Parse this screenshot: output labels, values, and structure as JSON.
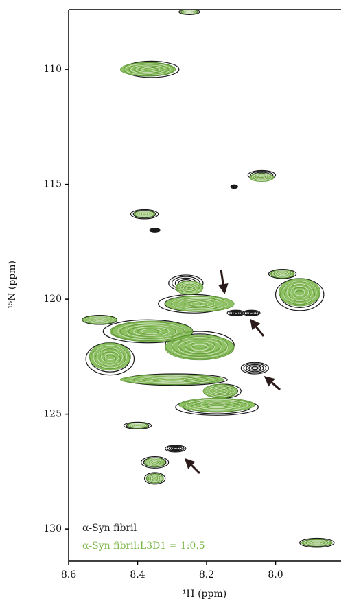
{
  "chart_data": {
    "type": "contour",
    "x_label": "¹H (ppm)",
    "y_label": "¹⁵N (ppm)",
    "xlim": [
      8.6,
      7.81
    ],
    "ylim": [
      107.4,
      131.4
    ],
    "xticks": [
      8.6,
      8.4,
      8.2,
      {
        "value": 8,
        "label": "8.0"
      }
    ],
    "yticks": [
      110,
      115,
      120,
      125,
      130
    ],
    "series": [
      {
        "name": "α-Syn fibril",
        "color": "#1a1a1a",
        "x": [
          8.25,
          8.36,
          8.04,
          8.12,
          8.38,
          8.35,
          8.26,
          7.98,
          7.93,
          8.24,
          8.51,
          8.115,
          8.07,
          8.37,
          8.48,
          8.22,
          8.06,
          8.29,
          8.17,
          8.15,
          8.4,
          8.29,
          8.35,
          8.35,
          7.88
        ],
        "y": [
          107.5,
          110.0,
          114.6,
          115.1,
          116.3,
          117.0,
          119.3,
          118.9,
          119.8,
          120.2,
          120.9,
          120.6,
          120.6,
          121.4,
          122.6,
          122.0,
          123.0,
          123.5,
          124.7,
          124.0,
          125.5,
          126.5,
          127.1,
          127.8,
          130.6
        ],
        "wx": [
          0.03,
          0.08,
          0.04,
          0.01,
          0.04,
          0.015,
          0.05,
          0.04,
          0.07,
          0.1,
          0.05,
          0.025,
          0.025,
          0.13,
          0.07,
          0.1,
          0.04,
          0.15,
          0.12,
          0.05,
          0.04,
          0.03,
          0.04,
          0.03,
          0.05
        ],
        "wy": [
          0.12,
          0.35,
          0.2,
          0.08,
          0.2,
          0.08,
          0.35,
          0.2,
          0.7,
          0.4,
          0.2,
          0.12,
          0.12,
          0.5,
          0.7,
          0.6,
          0.25,
          0.25,
          0.35,
          0.3,
          0.15,
          0.15,
          0.25,
          0.25,
          0.2
        ]
      },
      {
        "name": "α-Syn fibril:L3D1 = 1:0.5",
        "color": "#7ab648",
        "x": [
          8.25,
          8.37,
          8.04,
          8.38,
          8.25,
          7.98,
          7.93,
          8.22,
          8.51,
          8.36,
          8.48,
          8.22,
          8.3,
          8.17,
          8.16,
          8.4,
          8.35,
          8.35,
          7.88
        ],
        "y": [
          107.5,
          110.0,
          114.7,
          116.3,
          119.5,
          118.9,
          119.7,
          120.2,
          120.9,
          121.4,
          122.5,
          122.1,
          123.5,
          124.6,
          124.0,
          125.5,
          127.1,
          127.8,
          130.6
        ],
        "wx": [
          0.025,
          0.08,
          0.035,
          0.03,
          0.04,
          0.035,
          0.06,
          0.1,
          0.05,
          0.12,
          0.06,
          0.1,
          0.15,
          0.11,
          0.05,
          0.03,
          0.03,
          0.025,
          0.045
        ],
        "wy": [
          0.1,
          0.3,
          0.18,
          0.15,
          0.3,
          0.18,
          0.6,
          0.35,
          0.18,
          0.45,
          0.6,
          0.55,
          0.22,
          0.3,
          0.3,
          0.12,
          0.2,
          0.2,
          0.15
        ]
      }
    ]
  }
}
